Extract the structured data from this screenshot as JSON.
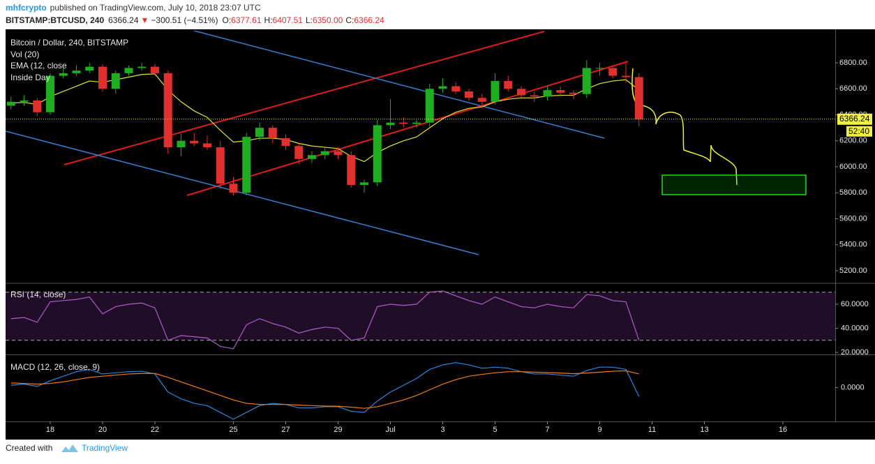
{
  "header": {
    "author": "mhfcrypto",
    "published": "published on TradingView.com, July 10, 2018 23:07 UTC",
    "symbol": "BITSTAMP:BTCUSD, 240",
    "last": "6366.24",
    "arrow": "▼",
    "change": "−300.51 (−4.51%)",
    "open_label": "O:",
    "open": "6377.61",
    "high_label": "H:",
    "high": "6407.51",
    "low_label": "L:",
    "low": "6350.00",
    "close_label": "C:",
    "close": "6366.24"
  },
  "footer": {
    "created": "Created with",
    "brand": "TradingView"
  },
  "chart_data": [
    {
      "type": "candlestick",
      "title": "Bitcoin / Dollar, 240, BITSTAMP",
      "legend": [
        "Vol (20)",
        "EMA (12, close",
        "Inside Day"
      ],
      "categories": [
        null,
        null,
        null,
        "18",
        null,
        null,
        null,
        "20",
        null,
        null,
        null,
        "22",
        null,
        null,
        null,
        null,
        null,
        "25",
        null,
        null,
        null,
        "27",
        null,
        null,
        null,
        "29",
        null,
        null,
        null,
        "Jul",
        null,
        null,
        null,
        "3",
        null,
        null,
        null,
        "5",
        null,
        null,
        null,
        "7",
        null,
        null,
        null,
        "9",
        null,
        null,
        null,
        "11",
        null,
        null,
        null,
        "13",
        null,
        null,
        null,
        null,
        null,
        "16",
        null,
        null,
        null,
        null
      ],
      "open": [
        6470,
        6500,
        6510,
        6420,
        6700,
        6720,
        6740,
        6770,
        6600,
        6720,
        6760,
        6770,
        6720,
        6150,
        6200,
        6180,
        6150,
        5870,
        5800,
        6230,
        6300,
        6220,
        6160,
        6060,
        6090,
        6120,
        6090,
        5860,
        5880,
        6320,
        6340,
        6330,
        6340,
        6600,
        6620,
        6580,
        6530,
        6500,
        6660,
        6600,
        6550,
        6540,
        6590,
        6570,
        6560,
        6760,
        6760,
        6700,
        6690,
        null,
        null,
        null,
        null,
        null,
        null,
        null,
        null,
        null,
        null,
        null,
        null,
        null,
        null,
        null
      ],
      "high": [
        6540,
        6550,
        6530,
        6720,
        6760,
        6780,
        6800,
        6790,
        6740,
        6780,
        6800,
        6790,
        6740,
        6250,
        6260,
        6240,
        6200,
        5920,
        6260,
        6340,
        6320,
        6250,
        6180,
        6120,
        6150,
        6150,
        6120,
        5900,
        6360,
        6520,
        6380,
        6360,
        6640,
        6680,
        6650,
        6600,
        6560,
        6720,
        6700,
        6620,
        6580,
        6620,
        6620,
        6590,
        6820,
        6800,
        6780,
        6810,
        6720,
        null,
        null,
        null,
        null,
        null,
        null,
        null,
        null,
        null,
        null,
        null,
        null,
        null,
        null,
        null
      ],
      "low": [
        6440,
        6470,
        6390,
        6400,
        6680,
        6700,
        6720,
        6580,
        6560,
        6700,
        6740,
        6700,
        6100,
        6080,
        6160,
        6130,
        5830,
        5780,
        5780,
        6200,
        6180,
        6130,
        6020,
        6030,
        6060,
        6060,
        5840,
        5800,
        5850,
        6290,
        6300,
        6300,
        6300,
        6570,
        6560,
        6510,
        6450,
        6480,
        6580,
        6530,
        6500,
        6510,
        6540,
        6520,
        6530,
        6700,
        6680,
        6650,
        6310,
        null,
        null,
        null,
        null,
        null,
        null,
        null,
        null,
        null,
        null,
        null,
        null,
        null,
        null,
        null
      ],
      "close": [
        6500,
        6510,
        6420,
        6700,
        6720,
        6740,
        6770,
        6600,
        6720,
        6760,
        6770,
        6720,
        6150,
        6200,
        6180,
        6150,
        5870,
        5800,
        6230,
        6300,
        6220,
        6160,
        6060,
        6090,
        6120,
        6090,
        5860,
        5880,
        6320,
        6340,
        6330,
        6340,
        6600,
        6620,
        6580,
        6530,
        6500,
        6660,
        6600,
        6550,
        6540,
        6590,
        6570,
        6560,
        6760,
        6760,
        6700,
        6690,
        6366.24,
        null,
        null,
        null,
        null,
        null,
        null,
        null,
        null,
        null,
        null,
        null,
        null,
        null,
        null,
        null
      ],
      "ema": {
        "color": "#e6e62e",
        "values": [
          6490,
          6495,
          6480,
          6540,
          6580,
          6620,
          6660,
          6650,
          6670,
          6690,
          6710,
          6715,
          6590,
          6500,
          6430,
          6380,
          6280,
          6190,
          6200,
          6220,
          6220,
          6210,
          6180,
          6160,
          6150,
          6140,
          6080,
          6040,
          6110,
          6160,
          6200,
          6230,
          6300,
          6370,
          6420,
          6450,
          6460,
          6500,
          6520,
          6530,
          6530,
          6545,
          6550,
          6550,
          6600,
          6640,
          6660,
          6670,
          6590,
          null,
          null,
          null,
          null,
          null,
          null,
          null,
          null,
          null,
          null,
          null,
          null,
          null,
          null,
          null
        ]
      },
      "up_color": "#1fae1f",
      "down_color": "#e0312f",
      "countdown": "52:40",
      "ylim": [
        5109,
        7047
      ],
      "yticks": [
        {
          "value": 5200,
          "label": "5200.00"
        },
        {
          "value": 5400,
          "label": "5400.00"
        },
        {
          "value": 5600,
          "label": "5600.00"
        },
        {
          "value": 5800,
          "label": "5800.00"
        },
        {
          "value": 6000,
          "label": "6000.00"
        },
        {
          "value": 6200,
          "label": "6200.00"
        },
        {
          "value": 6400,
          "label": "6400.00"
        },
        {
          "value": 6600,
          "label": "6600.00"
        },
        {
          "value": 6800,
          "label": "6800.00"
        }
      ],
      "grid": false
    },
    {
      "type": "line",
      "title": "RSI (14, close)",
      "color": "#b05cc8",
      "bands": [
        30,
        70
      ],
      "values": [
        48,
        49,
        45,
        62,
        63,
        64,
        66,
        52,
        58,
        60,
        61,
        57,
        30,
        34,
        33,
        32,
        25,
        23,
        43,
        48,
        44,
        41,
        36,
        39,
        41,
        40,
        30,
        32,
        58,
        60,
        59,
        60,
        70,
        71,
        67,
        63,
        60,
        66,
        62,
        58,
        57,
        60,
        58,
        57,
        68,
        67,
        63,
        62,
        30
      ],
      "ylim": [
        18.3,
        76.8
      ],
      "yticks": [
        {
          "value": 20,
          "label": "20.0000"
        },
        {
          "value": 40,
          "label": "40.0000"
        },
        {
          "value": 60,
          "label": "60.0000"
        }
      ]
    },
    {
      "type": "line",
      "title": "MACD (12, 26, close, 9)",
      "series": [
        {
          "color": "#2e86de",
          "values": [
            10,
            15,
            5,
            30,
            50,
            70,
            80,
            60,
            65,
            70,
            72,
            60,
            -20,
            -50,
            -70,
            -80,
            -110,
            -140,
            -110,
            -80,
            -70,
            -75,
            -90,
            -90,
            -85,
            -85,
            -105,
            -110,
            -60,
            -20,
            10,
            40,
            80,
            100,
            110,
            100,
            85,
            90,
            85,
            70,
            60,
            60,
            55,
            50,
            75,
            90,
            90,
            80,
            -40
          ]
        },
        {
          "color": "#f07d1a",
          "values": [
            20,
            18,
            15,
            18,
            25,
            35,
            45,
            50,
            55,
            60,
            62,
            62,
            45,
            25,
            5,
            -15,
            -35,
            -55,
            -70,
            -75,
            -75,
            -75,
            -78,
            -80,
            -82,
            -83,
            -87,
            -92,
            -85,
            -70,
            -55,
            -35,
            -10,
            15,
            35,
            50,
            58,
            65,
            70,
            70,
            68,
            66,
            64,
            61,
            64,
            68,
            72,
            74,
            60
          ]
        }
      ],
      "ylim": [
        -150,
        140
      ],
      "yticks": [
        {
          "value": 0,
          "label": "0.0000"
        }
      ]
    }
  ]
}
